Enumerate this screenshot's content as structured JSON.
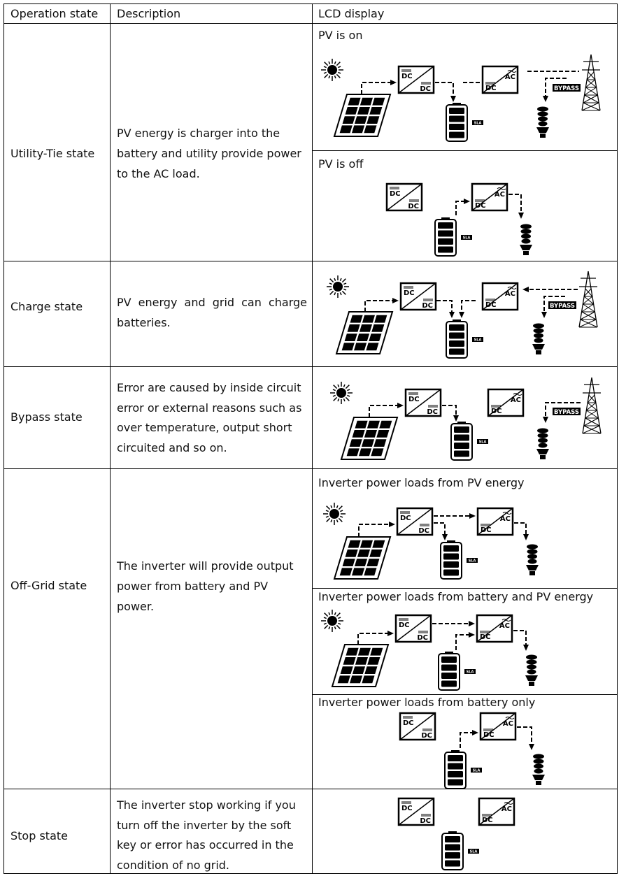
{
  "table": {
    "header": [
      "Operation state",
      "Description",
      "LCD display"
    ],
    "rows": [
      {
        "state": "Utility-Tie state",
        "description": "PV energy is charger into the battery and utility provide power to the AC load.",
        "displays": [
          "PV is on",
          "PV is off"
        ]
      },
      {
        "state": "Charge state",
        "description": "PV energy and grid can charge batteries."
      },
      {
        "state": "Bypass state",
        "description": "Error are caused by inside circuit error or external reasons such as over temperature, output short circuited and so on."
      },
      {
        "state": "Off-Grid state",
        "description": "The inverter will provide output power from battery and PV power.",
        "displays": [
          "Inverter power loads from PV energy",
          "Inverter power loads from battery and PV energy",
          "Inverter power loads from battery only"
        ]
      },
      {
        "state": "Stop state",
        "description": "The inverter stop working if you turn off the inverter by the soft key or error has occurred in the condition of no grid."
      }
    ]
  },
  "icon_labels": {
    "dc": "DC",
    "ac": "AC",
    "battery": "SLA",
    "grid": "BYPASS"
  }
}
